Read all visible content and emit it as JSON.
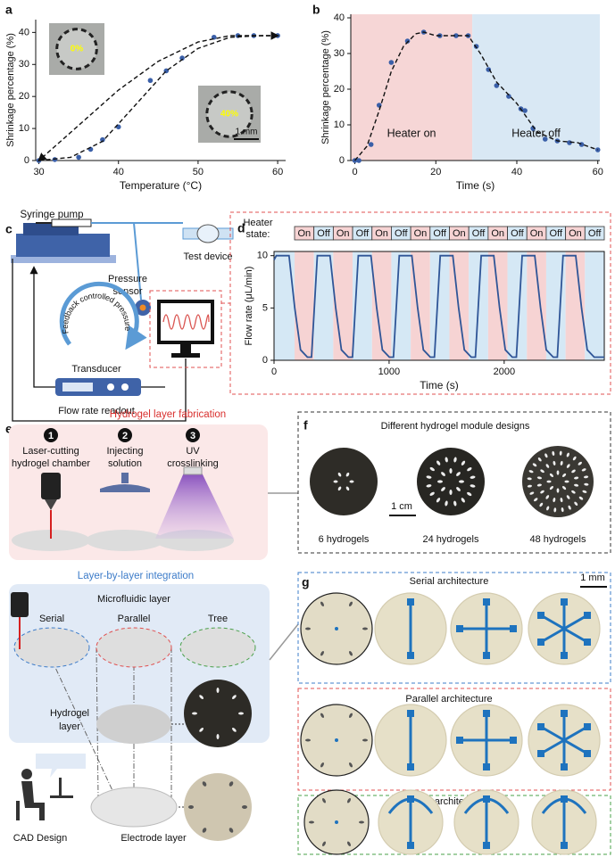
{
  "chart_data": [
    {
      "type": "scatter",
      "panel_label": "a",
      "x_label": "Temperature (°C)",
      "y_label": "Shrinkage percentage (%)",
      "xlim": [
        29.6,
        61
      ],
      "ylim": [
        0,
        44
      ],
      "xticks": [
        30,
        40,
        50,
        60
      ],
      "yticks": [
        0,
        10,
        20,
        30,
        40
      ],
      "series": [
        {
          "style": "points",
          "color": "#3a5fa8",
          "x": [
            30,
            32,
            35,
            36.5,
            38,
            40,
            44,
            46,
            48,
            52,
            55,
            57,
            60
          ],
          "values": [
            0,
            0.3,
            1,
            3.5,
            6.5,
            10.5,
            25,
            28,
            32,
            38.5,
            39,
            39,
            39
          ]
        },
        {
          "style": "dashed",
          "arrow": true,
          "color": "#111111",
          "x": [
            30,
            34,
            38,
            42,
            46,
            50,
            54,
            58,
            60
          ],
          "values": [
            0,
            1,
            6,
            17,
            28,
            35,
            38.5,
            39,
            39
          ]
        },
        {
          "style": "dashed",
          "arrow": true,
          "color": "#111111",
          "x": [
            60,
            54,
            50,
            45,
            40,
            35,
            30
          ],
          "values": [
            39,
            39,
            37,
            31,
            22,
            11,
            0
          ]
        }
      ],
      "inset_labels": [
        "0%",
        "40%"
      ],
      "scale_bar": "1 mm"
    },
    {
      "type": "scatter",
      "panel_label": "b",
      "x_label": "Time (s)",
      "y_label": "Shrinkage percentage (%)",
      "xlim": [
        -1,
        60.5
      ],
      "ylim": [
        0,
        41
      ],
      "xticks": [
        0,
        20,
        40,
        60
      ],
      "yticks": [
        0,
        10,
        20,
        30,
        40
      ],
      "bands": [
        {
          "from": -1,
          "to": 29,
          "color": "#f6d6d6",
          "label": "Heater on"
        },
        {
          "from": 29,
          "to": 60.5,
          "color": "#d9e8f4",
          "label": "Heater off"
        }
      ],
      "series": [
        {
          "style": "points",
          "color": "#3a5fa8",
          "x": [
            0,
            1,
            4,
            6,
            9,
            13,
            17,
            21,
            25,
            28,
            30,
            33,
            35,
            38,
            41,
            42,
            44,
            47,
            50,
            53,
            56,
            60
          ],
          "values": [
            0,
            0,
            4.5,
            15.5,
            27.5,
            33.5,
            36,
            35,
            35,
            35,
            32,
            25.5,
            21,
            18,
            14.5,
            14,
            9,
            6,
            5.5,
            5,
            4.5,
            3
          ]
        },
        {
          "style": "dashed",
          "color": "#111111",
          "x": [
            0,
            3,
            6,
            9,
            12,
            15,
            17,
            20,
            25,
            28,
            31,
            35,
            40,
            45,
            50,
            55,
            60
          ],
          "values": [
            0,
            4,
            14,
            25,
            32,
            35.5,
            36,
            35,
            35,
            35,
            30,
            22,
            16,
            8,
            5.5,
            5,
            3
          ]
        }
      ]
    },
    {
      "type": "line",
      "panel_label": "d",
      "x_label": "Time (s)",
      "y_label": "Flow rate (μL/min)",
      "frame": true,
      "xlim": [
        0,
        2870
      ],
      "ylim": [
        0,
        10.4
      ],
      "xticks": [
        0,
        1000,
        2000
      ],
      "yticks": [
        0,
        5,
        10
      ],
      "heater_state_label": [
        "Heater",
        "state:"
      ],
      "heater_states": [
        "On",
        "Off",
        "On",
        "Off",
        "On",
        "Off",
        "On",
        "Off",
        "On",
        "Off",
        "On",
        "Off",
        "On",
        "Off",
        "On",
        "Off"
      ],
      "state_colors": {
        "On": "#f6d3d3",
        "Off": "#d5e8f5"
      },
      "series": [
        {
          "style": "line",
          "color": "#2f5597",
          "x": [
            0,
            20,
            130,
            180,
            230,
            290,
            326,
            376,
            486,
            536,
            586,
            646,
            682,
            732,
            842,
            892,
            942,
            1002,
            1038,
            1088,
            1198,
            1248,
            1298,
            1358,
            1394,
            1444,
            1554,
            1604,
            1654,
            1714,
            1750,
            1800,
            1910,
            1960,
            2010,
            2070,
            2106,
            2156,
            2266,
            2316,
            2366,
            2426,
            2462,
            2512,
            2622,
            2672,
            2722,
            2782,
            2870
          ],
          "values": [
            9.6,
            10,
            10,
            5,
            1,
            0.3,
            0.3,
            10,
            10,
            5,
            1,
            0.3,
            0.3,
            10,
            10,
            5,
            1,
            0.3,
            0.3,
            10,
            10,
            5,
            1,
            0.3,
            0.3,
            10,
            10,
            5,
            1,
            0.3,
            0.3,
            10,
            10,
            5,
            1,
            0.3,
            0.3,
            10,
            10,
            5,
            1,
            0.3,
            0.3,
            10,
            10,
            5,
            1,
            0.3,
            0.3
          ]
        }
      ]
    }
  ],
  "figure": {
    "c": {
      "label": "c",
      "syringe_pump": "Syringe pump",
      "pressure_sensor": [
        "Pressure",
        "sensor"
      ],
      "test_device": "Test device",
      "feedback": "Feedback controlled pressure",
      "transducer": "Transducer",
      "readout": "Flow rate readout"
    },
    "e": {
      "label": "e",
      "fabrication_title": "Hydrogel layer fabrication",
      "steps": [
        {
          "number": "1",
          "text": [
            "Laser-cutting",
            "hydrogel chamber"
          ]
        },
        {
          "number": "2",
          "text": [
            "Injecting",
            "solution"
          ]
        },
        {
          "number": "3",
          "text": [
            "UV",
            "crosslinking"
          ]
        }
      ],
      "integration_title": "Layer-by-layer integration",
      "microfluidic_layer": "Microfluidic layer",
      "architectures": [
        "Serial",
        "Parallel",
        "Tree"
      ],
      "hydrogel_layer": [
        "Hydrogel",
        "layer"
      ],
      "cad": "CAD Design",
      "electrode_layer": "Electrode layer"
    },
    "f": {
      "label": "f",
      "title": "Different hydrogel module designs",
      "scale_bar": "1 cm",
      "designs": [
        "6 hydrogels",
        "24 hydrogels",
        "48 hydrogels"
      ]
    },
    "g": {
      "label": "g",
      "rows": [
        "Serial architecture",
        "Parallel architecture",
        "Tree architecture"
      ],
      "scale_bar": "1 mm"
    }
  }
}
